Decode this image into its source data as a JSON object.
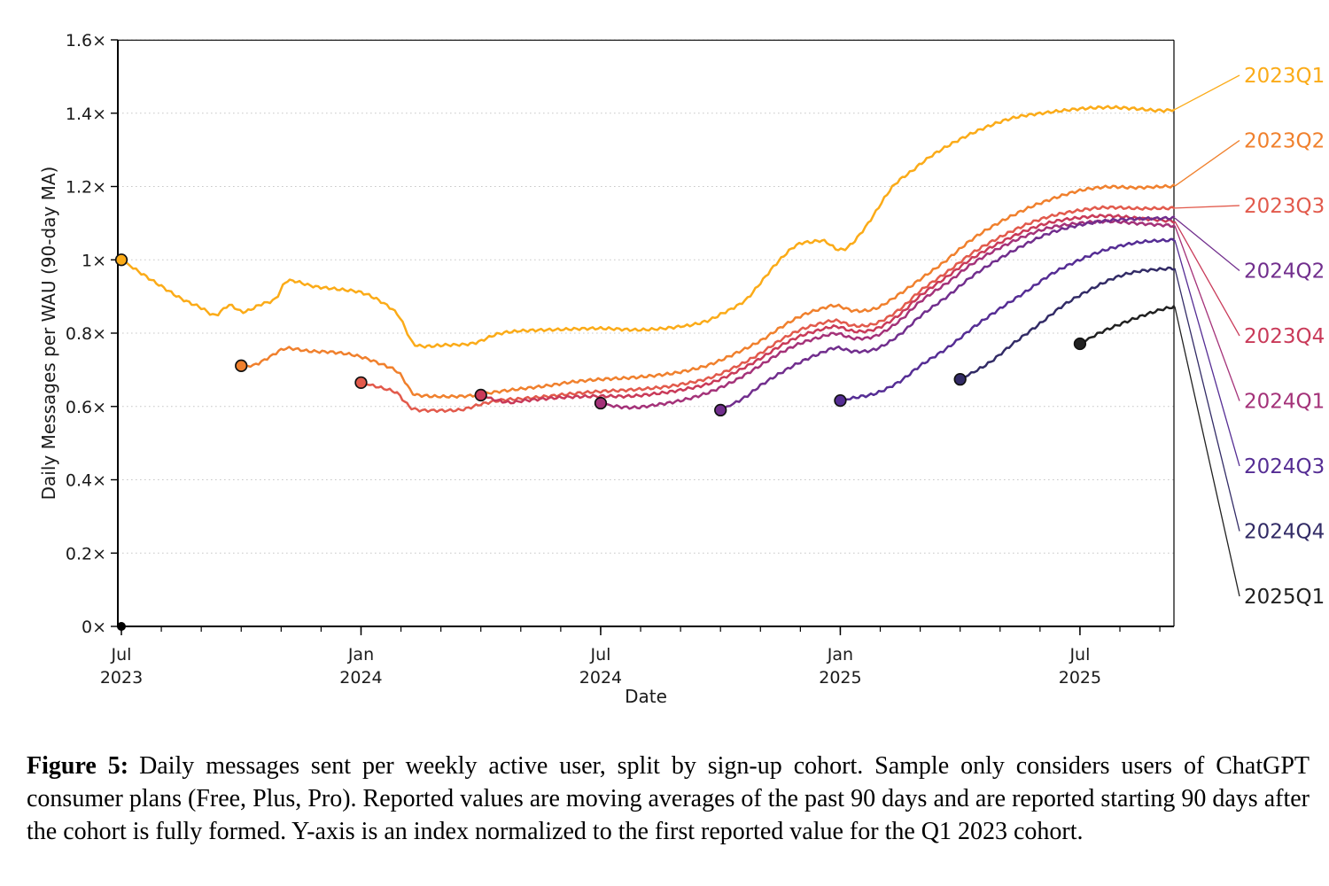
{
  "figure": {
    "caption_label": "Figure 5:",
    "caption_text": "Daily messages sent per weekly active user, split by sign-up cohort. Sample only considers users of ChatGPT consumer plans (Free, Plus, Pro). Reported values are moving averages of the past 90 days and are reported starting 90 days after the cohort is fully formed. Y-axis is an index normalized to the first reported value for the Q1 2023 cohort."
  },
  "chart_data": {
    "type": "line",
    "title": "",
    "xlabel": "Date",
    "ylabel": "Daily Messages per WAU (90-day MA)",
    "ylim": [
      0,
      1.6
    ],
    "grid": "horizontal-dotted",
    "grid_color": "#c8c8c8",
    "axis_color": "#000000",
    "legend_position": "right-outside",
    "y_ticks": [
      {
        "label": "0×",
        "value": 0.0
      },
      {
        "label": "0.2×",
        "value": 0.2
      },
      {
        "label": "0.4×",
        "value": 0.4
      },
      {
        "label": "0.6×",
        "value": 0.6
      },
      {
        "label": "0.8×",
        "value": 0.8
      },
      {
        "label": "1×",
        "value": 1.0
      },
      {
        "label": "1.2×",
        "value": 1.2
      },
      {
        "label": "1.4×",
        "value": 1.4
      },
      {
        "label": "1.6×",
        "value": 1.6
      }
    ],
    "x_ticks": [
      {
        "month": 0,
        "line1": "Jul",
        "line2": "2023"
      },
      {
        "month": 6,
        "line1": "Jan",
        "line2": "2024"
      },
      {
        "month": 12,
        "line1": "Jul",
        "line2": "2024"
      },
      {
        "month": 18,
        "line1": "Jan",
        "line2": "2025"
      },
      {
        "month": 24,
        "line1": "Jul",
        "line2": "2025"
      }
    ],
    "x_minor_tick_every_month": 1,
    "x_months_total": 26,
    "legend_order": [
      "2023Q1",
      "2023Q2",
      "2023Q3",
      "2024Q2",
      "2023Q4",
      "2024Q1",
      "2024Q3",
      "2024Q4",
      "2025Q1"
    ],
    "series": [
      {
        "name": "2023Q1",
        "color": "#FBAB18",
        "start_marker": true,
        "points": [
          [
            0,
            1.0
          ],
          [
            0.5,
            0.963
          ],
          [
            1,
            0.928
          ],
          [
            1.5,
            0.894
          ],
          [
            2,
            0.869
          ],
          [
            2.35,
            0.849
          ],
          [
            2.7,
            0.876
          ],
          [
            3.05,
            0.858
          ],
          [
            3.5,
            0.879
          ],
          [
            3.85,
            0.893
          ],
          [
            4.1,
            0.938
          ],
          [
            4.3,
            0.943
          ],
          [
            4.8,
            0.928
          ],
          [
            5.4,
            0.92
          ],
          [
            6,
            0.911
          ],
          [
            6.5,
            0.886
          ],
          [
            6.9,
            0.853
          ],
          [
            7.1,
            0.815
          ],
          [
            7.3,
            0.773
          ],
          [
            7.6,
            0.764
          ],
          [
            8,
            0.767
          ],
          [
            8.8,
            0.772
          ],
          [
            9.4,
            0.797
          ],
          [
            10,
            0.806
          ],
          [
            11,
            0.81
          ],
          [
            12,
            0.813
          ],
          [
            13,
            0.809
          ],
          [
            14,
            0.818
          ],
          [
            14.6,
            0.831
          ],
          [
            15,
            0.851
          ],
          [
            15.6,
            0.888
          ],
          [
            16,
            0.937
          ],
          [
            16.4,
            0.99
          ],
          [
            16.9,
            1.04
          ],
          [
            17.3,
            1.049
          ],
          [
            17.6,
            1.051
          ],
          [
            17.95,
            1.028
          ],
          [
            18.25,
            1.04
          ],
          [
            18.7,
            1.1
          ],
          [
            19.3,
            1.198
          ],
          [
            19.8,
            1.243
          ],
          [
            20.3,
            1.285
          ],
          [
            21,
            1.329
          ],
          [
            21.7,
            1.364
          ],
          [
            22.4,
            1.389
          ],
          [
            23.2,
            1.402
          ],
          [
            24,
            1.412
          ],
          [
            24.7,
            1.416
          ],
          [
            25.3,
            1.413
          ],
          [
            26,
            1.407
          ],
          [
            26.35,
            1.41
          ]
        ]
      },
      {
        "name": "2023Q2",
        "color": "#F0802D",
        "start_marker": true,
        "points": [
          [
            3,
            0.711
          ],
          [
            3.3,
            0.712
          ],
          [
            3.65,
            0.731
          ],
          [
            4,
            0.754
          ],
          [
            4.2,
            0.759
          ],
          [
            4.7,
            0.751
          ],
          [
            5.3,
            0.748
          ],
          [
            5.9,
            0.738
          ],
          [
            6.5,
            0.716
          ],
          [
            6.9,
            0.696
          ],
          [
            7.1,
            0.668
          ],
          [
            7.3,
            0.636
          ],
          [
            7.6,
            0.629
          ],
          [
            8.2,
            0.627
          ],
          [
            8.8,
            0.63
          ],
          [
            9.4,
            0.64
          ],
          [
            10,
            0.648
          ],
          [
            10.7,
            0.657
          ],
          [
            11.3,
            0.667
          ],
          [
            12,
            0.674
          ],
          [
            12.7,
            0.678
          ],
          [
            13.4,
            0.685
          ],
          [
            14,
            0.694
          ],
          [
            14.7,
            0.713
          ],
          [
            15.4,
            0.746
          ],
          [
            16,
            0.779
          ],
          [
            16.5,
            0.815
          ],
          [
            17,
            0.846
          ],
          [
            17.5,
            0.866
          ],
          [
            17.9,
            0.875
          ],
          [
            18.35,
            0.861
          ],
          [
            18.9,
            0.868
          ],
          [
            19.5,
            0.908
          ],
          [
            20,
            0.947
          ],
          [
            20.6,
            0.994
          ],
          [
            21.3,
            1.056
          ],
          [
            22,
            1.103
          ],
          [
            22.7,
            1.141
          ],
          [
            23.3,
            1.166
          ],
          [
            24,
            1.189
          ],
          [
            24.7,
            1.199
          ],
          [
            25.4,
            1.197
          ],
          [
            26.35,
            1.201
          ]
        ]
      },
      {
        "name": "2023Q3",
        "color": "#E25A4C",
        "start_marker": true,
        "points": [
          [
            6,
            0.665
          ],
          [
            6.5,
            0.651
          ],
          [
            6.9,
            0.637
          ],
          [
            7.1,
            0.612
          ],
          [
            7.35,
            0.592
          ],
          [
            7.9,
            0.589
          ],
          [
            8.5,
            0.591
          ],
          [
            9,
            0.606
          ],
          [
            9.5,
            0.617
          ],
          [
            10,
            0.621
          ],
          [
            10.7,
            0.628
          ],
          [
            11.3,
            0.635
          ],
          [
            12,
            0.641
          ],
          [
            12.7,
            0.645
          ],
          [
            13.5,
            0.652
          ],
          [
            14,
            0.66
          ],
          [
            14.7,
            0.677
          ],
          [
            15.4,
            0.709
          ],
          [
            16,
            0.745
          ],
          [
            16.5,
            0.781
          ],
          [
            17,
            0.809
          ],
          [
            17.5,
            0.826
          ],
          [
            17.9,
            0.834
          ],
          [
            18.35,
            0.82
          ],
          [
            18.9,
            0.827
          ],
          [
            19.5,
            0.866
          ],
          [
            20,
            0.915
          ],
          [
            20.7,
            0.969
          ],
          [
            21.3,
            1.018
          ],
          [
            22,
            1.062
          ],
          [
            22.7,
            1.098
          ],
          [
            23.3,
            1.12
          ],
          [
            24,
            1.135
          ],
          [
            24.7,
            1.143
          ],
          [
            25.5,
            1.14
          ],
          [
            26.35,
            1.141
          ]
        ]
      },
      {
        "name": "2023Q4",
        "color": "#C93A59",
        "start_marker": true,
        "points": [
          [
            9,
            0.631
          ],
          [
            9.4,
            0.617
          ],
          [
            9.75,
            0.611
          ],
          [
            10.1,
            0.616
          ],
          [
            10.7,
            0.622
          ],
          [
            11.3,
            0.626
          ],
          [
            12,
            0.628
          ],
          [
            12.7,
            0.628
          ],
          [
            13.4,
            0.635
          ],
          [
            14,
            0.645
          ],
          [
            14.7,
            0.662
          ],
          [
            15.4,
            0.695
          ],
          [
            16,
            0.731
          ],
          [
            16.5,
            0.765
          ],
          [
            17,
            0.792
          ],
          [
            17.5,
            0.809
          ],
          [
            17.9,
            0.818
          ],
          [
            18.35,
            0.805
          ],
          [
            18.9,
            0.812
          ],
          [
            19.5,
            0.852
          ],
          [
            20,
            0.902
          ],
          [
            20.7,
            0.956
          ],
          [
            21.3,
            1.004
          ],
          [
            22,
            1.047
          ],
          [
            22.7,
            1.082
          ],
          [
            23.3,
            1.103
          ],
          [
            24,
            1.115
          ],
          [
            24.7,
            1.12
          ],
          [
            25.5,
            1.113
          ],
          [
            26.35,
            1.105
          ]
        ]
      },
      {
        "name": "2024Q1",
        "color": "#A43279",
        "start_marker": true,
        "points": [
          [
            12,
            0.609
          ],
          [
            12.4,
            0.6
          ],
          [
            12.85,
            0.597
          ],
          [
            13.3,
            0.603
          ],
          [
            14,
            0.616
          ],
          [
            14.7,
            0.638
          ],
          [
            15.4,
            0.673
          ],
          [
            16,
            0.712
          ],
          [
            16.5,
            0.746
          ],
          [
            17,
            0.772
          ],
          [
            17.5,
            0.789
          ],
          [
            17.9,
            0.799
          ],
          [
            18.35,
            0.786
          ],
          [
            18.9,
            0.793
          ],
          [
            19.5,
            0.835
          ],
          [
            20,
            0.886
          ],
          [
            20.7,
            0.939
          ],
          [
            21.3,
            0.989
          ],
          [
            22,
            1.033
          ],
          [
            22.7,
            1.068
          ],
          [
            23.3,
            1.089
          ],
          [
            24,
            1.1
          ],
          [
            24.7,
            1.105
          ],
          [
            25.5,
            1.099
          ],
          [
            26.35,
            1.093
          ]
        ]
      },
      {
        "name": "2024Q2",
        "color": "#712E8D",
        "start_marker": true,
        "points": [
          [
            15,
            0.59
          ],
          [
            15.6,
            0.624
          ],
          [
            16,
            0.657
          ],
          [
            16.5,
            0.691
          ],
          [
            17,
            0.721
          ],
          [
            17.5,
            0.745
          ],
          [
            17.9,
            0.76
          ],
          [
            18.35,
            0.75
          ],
          [
            18.9,
            0.757
          ],
          [
            19.5,
            0.797
          ],
          [
            20,
            0.846
          ],
          [
            20.7,
            0.902
          ],
          [
            21.3,
            0.955
          ],
          [
            22,
            1.004
          ],
          [
            22.7,
            1.046
          ],
          [
            23.3,
            1.075
          ],
          [
            24,
            1.095
          ],
          [
            24.7,
            1.107
          ],
          [
            25.5,
            1.112
          ],
          [
            26.35,
            1.114
          ]
        ]
      },
      {
        "name": "2024Q3",
        "color": "#552D94",
        "start_marker": true,
        "points": [
          [
            18,
            0.616
          ],
          [
            18.4,
            0.625
          ],
          [
            18.9,
            0.636
          ],
          [
            19.5,
            0.669
          ],
          [
            20,
            0.711
          ],
          [
            20.7,
            0.761
          ],
          [
            21.3,
            0.813
          ],
          [
            22,
            0.867
          ],
          [
            22.7,
            0.917
          ],
          [
            23.3,
            0.962
          ],
          [
            24,
            1.0
          ],
          [
            24.7,
            1.029
          ],
          [
            25.5,
            1.048
          ],
          [
            26.35,
            1.054
          ]
        ]
      },
      {
        "name": "2024Q4",
        "color": "#322B66",
        "start_marker": true,
        "points": [
          [
            21,
            0.674
          ],
          [
            21.7,
            0.717
          ],
          [
            22.3,
            0.769
          ],
          [
            23,
            0.826
          ],
          [
            23.6,
            0.877
          ],
          [
            24.3,
            0.921
          ],
          [
            24.9,
            0.952
          ],
          [
            25.5,
            0.969
          ],
          [
            26.35,
            0.977
          ]
        ]
      },
      {
        "name": "2025Q1",
        "color": "#212121",
        "start_marker": true,
        "points": [
          [
            24,
            0.771
          ],
          [
            24.5,
            0.801
          ],
          [
            25,
            0.824
          ],
          [
            25.5,
            0.845
          ],
          [
            26,
            0.863
          ],
          [
            26.35,
            0.872
          ]
        ]
      }
    ]
  }
}
